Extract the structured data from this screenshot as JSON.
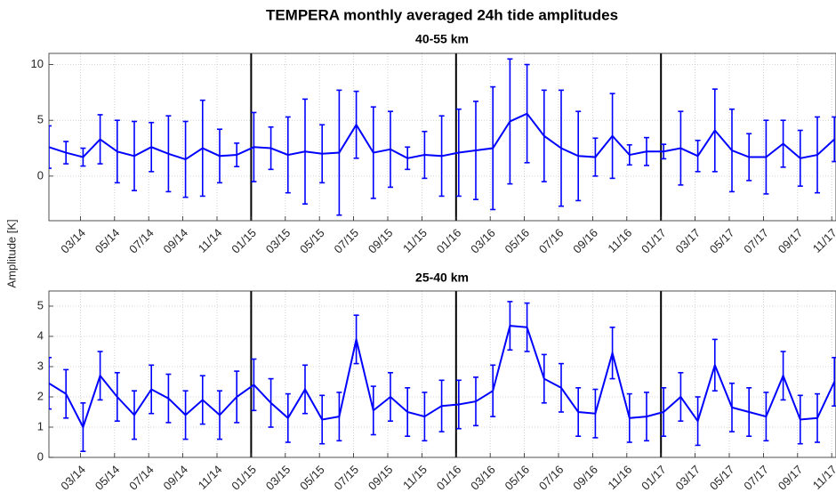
{
  "title": "TEMPERA monthly averaged 24h tide amplitudes",
  "ylabel": "Amplitude [K]",
  "chart_data": [
    {
      "type": "line",
      "title": "40-55 km",
      "categories": [
        null,
        null,
        "03/14",
        null,
        "05/14",
        null,
        "07/14",
        null,
        "09/14",
        null,
        "11/14",
        null,
        "01/15",
        null,
        "03/15",
        null,
        "05/15",
        null,
        "07/15",
        null,
        "09/15",
        null,
        "11/15",
        null,
        "01/16",
        null,
        "03/16",
        null,
        "05/16",
        null,
        "07/16",
        null,
        "09/16",
        null,
        "11/16",
        null,
        "01/17",
        null,
        "03/17",
        null,
        "05/17",
        null,
        "07/17",
        null,
        "09/17",
        null,
        "11/17"
      ],
      "series": [
        {
          "color": "#0000ff",
          "values": [
            2.6,
            2.1,
            1.7,
            3.3,
            2.2,
            1.8,
            2.6,
            2.0,
            1.5,
            2.5,
            1.8,
            1.9,
            2.6,
            2.5,
            1.9,
            2.2,
            2.0,
            2.1,
            4.6,
            2.1,
            2.4,
            1.6,
            1.9,
            1.8,
            2.1,
            2.3,
            2.5,
            4.9,
            5.6,
            3.6,
            2.5,
            1.8,
            1.7,
            3.6,
            1.9,
            2.2,
            2.2,
            2.5,
            1.8,
            4.1,
            2.3,
            1.7,
            1.7,
            2.9,
            1.6,
            1.9,
            3.3
          ],
          "errors": [
            1.9,
            1.0,
            0.8,
            2.2,
            2.8,
            3.1,
            2.2,
            3.4,
            3.4,
            4.3,
            2.4,
            1.05,
            3.1,
            1.9,
            3.4,
            4.7,
            2.6,
            5.6,
            3.0,
            4.1,
            3.4,
            1.0,
            2.1,
            3.6,
            3.9,
            4.4,
            5.5,
            5.6,
            4.4,
            4.1,
            5.2,
            4.0,
            1.7,
            3.8,
            0.9,
            1.25,
            0.65,
            3.3,
            1.4,
            3.7,
            3.7,
            2.1,
            3.3,
            2.1,
            2.5,
            3.4,
            2.0
          ]
        }
      ],
      "ylim": [
        -4,
        11
      ],
      "yticks": [
        0,
        5,
        10
      ],
      "grid": true
    },
    {
      "type": "line",
      "title": "25-40 km",
      "categories": [
        null,
        null,
        "03/14",
        null,
        "05/14",
        null,
        "07/14",
        null,
        "09/14",
        null,
        "11/14",
        null,
        "01/15",
        null,
        "03/15",
        null,
        "05/15",
        null,
        "07/15",
        null,
        "09/15",
        null,
        "11/15",
        null,
        "01/16",
        null,
        "03/16",
        null,
        "05/16",
        null,
        "07/16",
        null,
        "09/16",
        null,
        "11/16",
        null,
        "01/17",
        null,
        "03/17",
        null,
        "05/17",
        null,
        "07/17",
        null,
        "09/17",
        null,
        "11/17"
      ],
      "series": [
        {
          "color": "#0000ff",
          "values": [
            2.45,
            2.1,
            1.0,
            2.7,
            2.0,
            1.4,
            2.25,
            1.95,
            1.4,
            1.9,
            1.4,
            2.0,
            2.4,
            1.8,
            1.3,
            2.25,
            1.25,
            1.35,
            3.9,
            1.55,
            2.0,
            1.5,
            1.35,
            1.7,
            1.75,
            1.85,
            2.2,
            4.35,
            4.3,
            2.6,
            2.3,
            1.5,
            1.45,
            3.45,
            1.3,
            1.35,
            1.5,
            2.0,
            1.2,
            3.05,
            1.65,
            1.5,
            1.35,
            2.7,
            1.25,
            1.3,
            2.5
          ],
          "errors": [
            0.85,
            0.8,
            0.8,
            0.8,
            0.8,
            0.8,
            0.8,
            0.8,
            0.8,
            0.8,
            0.8,
            0.85,
            0.85,
            0.8,
            0.8,
            0.8,
            0.8,
            0.8,
            0.8,
            0.8,
            0.8,
            0.8,
            0.8,
            0.85,
            0.8,
            0.8,
            0.85,
            0.8,
            0.8,
            0.8,
            0.8,
            0.8,
            0.8,
            0.85,
            0.8,
            0.8,
            0.8,
            0.8,
            0.8,
            0.85,
            0.8,
            0.8,
            0.8,
            0.8,
            0.8,
            0.8,
            0.8
          ]
        }
      ],
      "ylim": [
        0,
        5.5
      ],
      "yticks": [
        0,
        1,
        2,
        3,
        4,
        5
      ],
      "grid": true
    }
  ]
}
